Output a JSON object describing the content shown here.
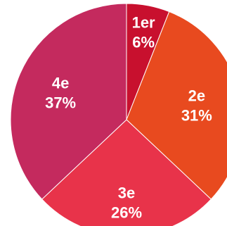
{
  "chart_data": {
    "type": "pie",
    "title": "",
    "slices": [
      {
        "label": "1er",
        "value": 6,
        "value_label": "6%",
        "color": "#C8102E"
      },
      {
        "label": "2e",
        "value": 31,
        "value_label": "31%",
        "color": "#E84A1F"
      },
      {
        "label": "3e",
        "value": 26,
        "value_label": "26%",
        "color": "#E8334A"
      },
      {
        "label": "4e",
        "value": 37,
        "value_label": "37%",
        "color": "#C42A5E"
      }
    ],
    "start_angle_deg": 0,
    "direction": "clockwise"
  }
}
